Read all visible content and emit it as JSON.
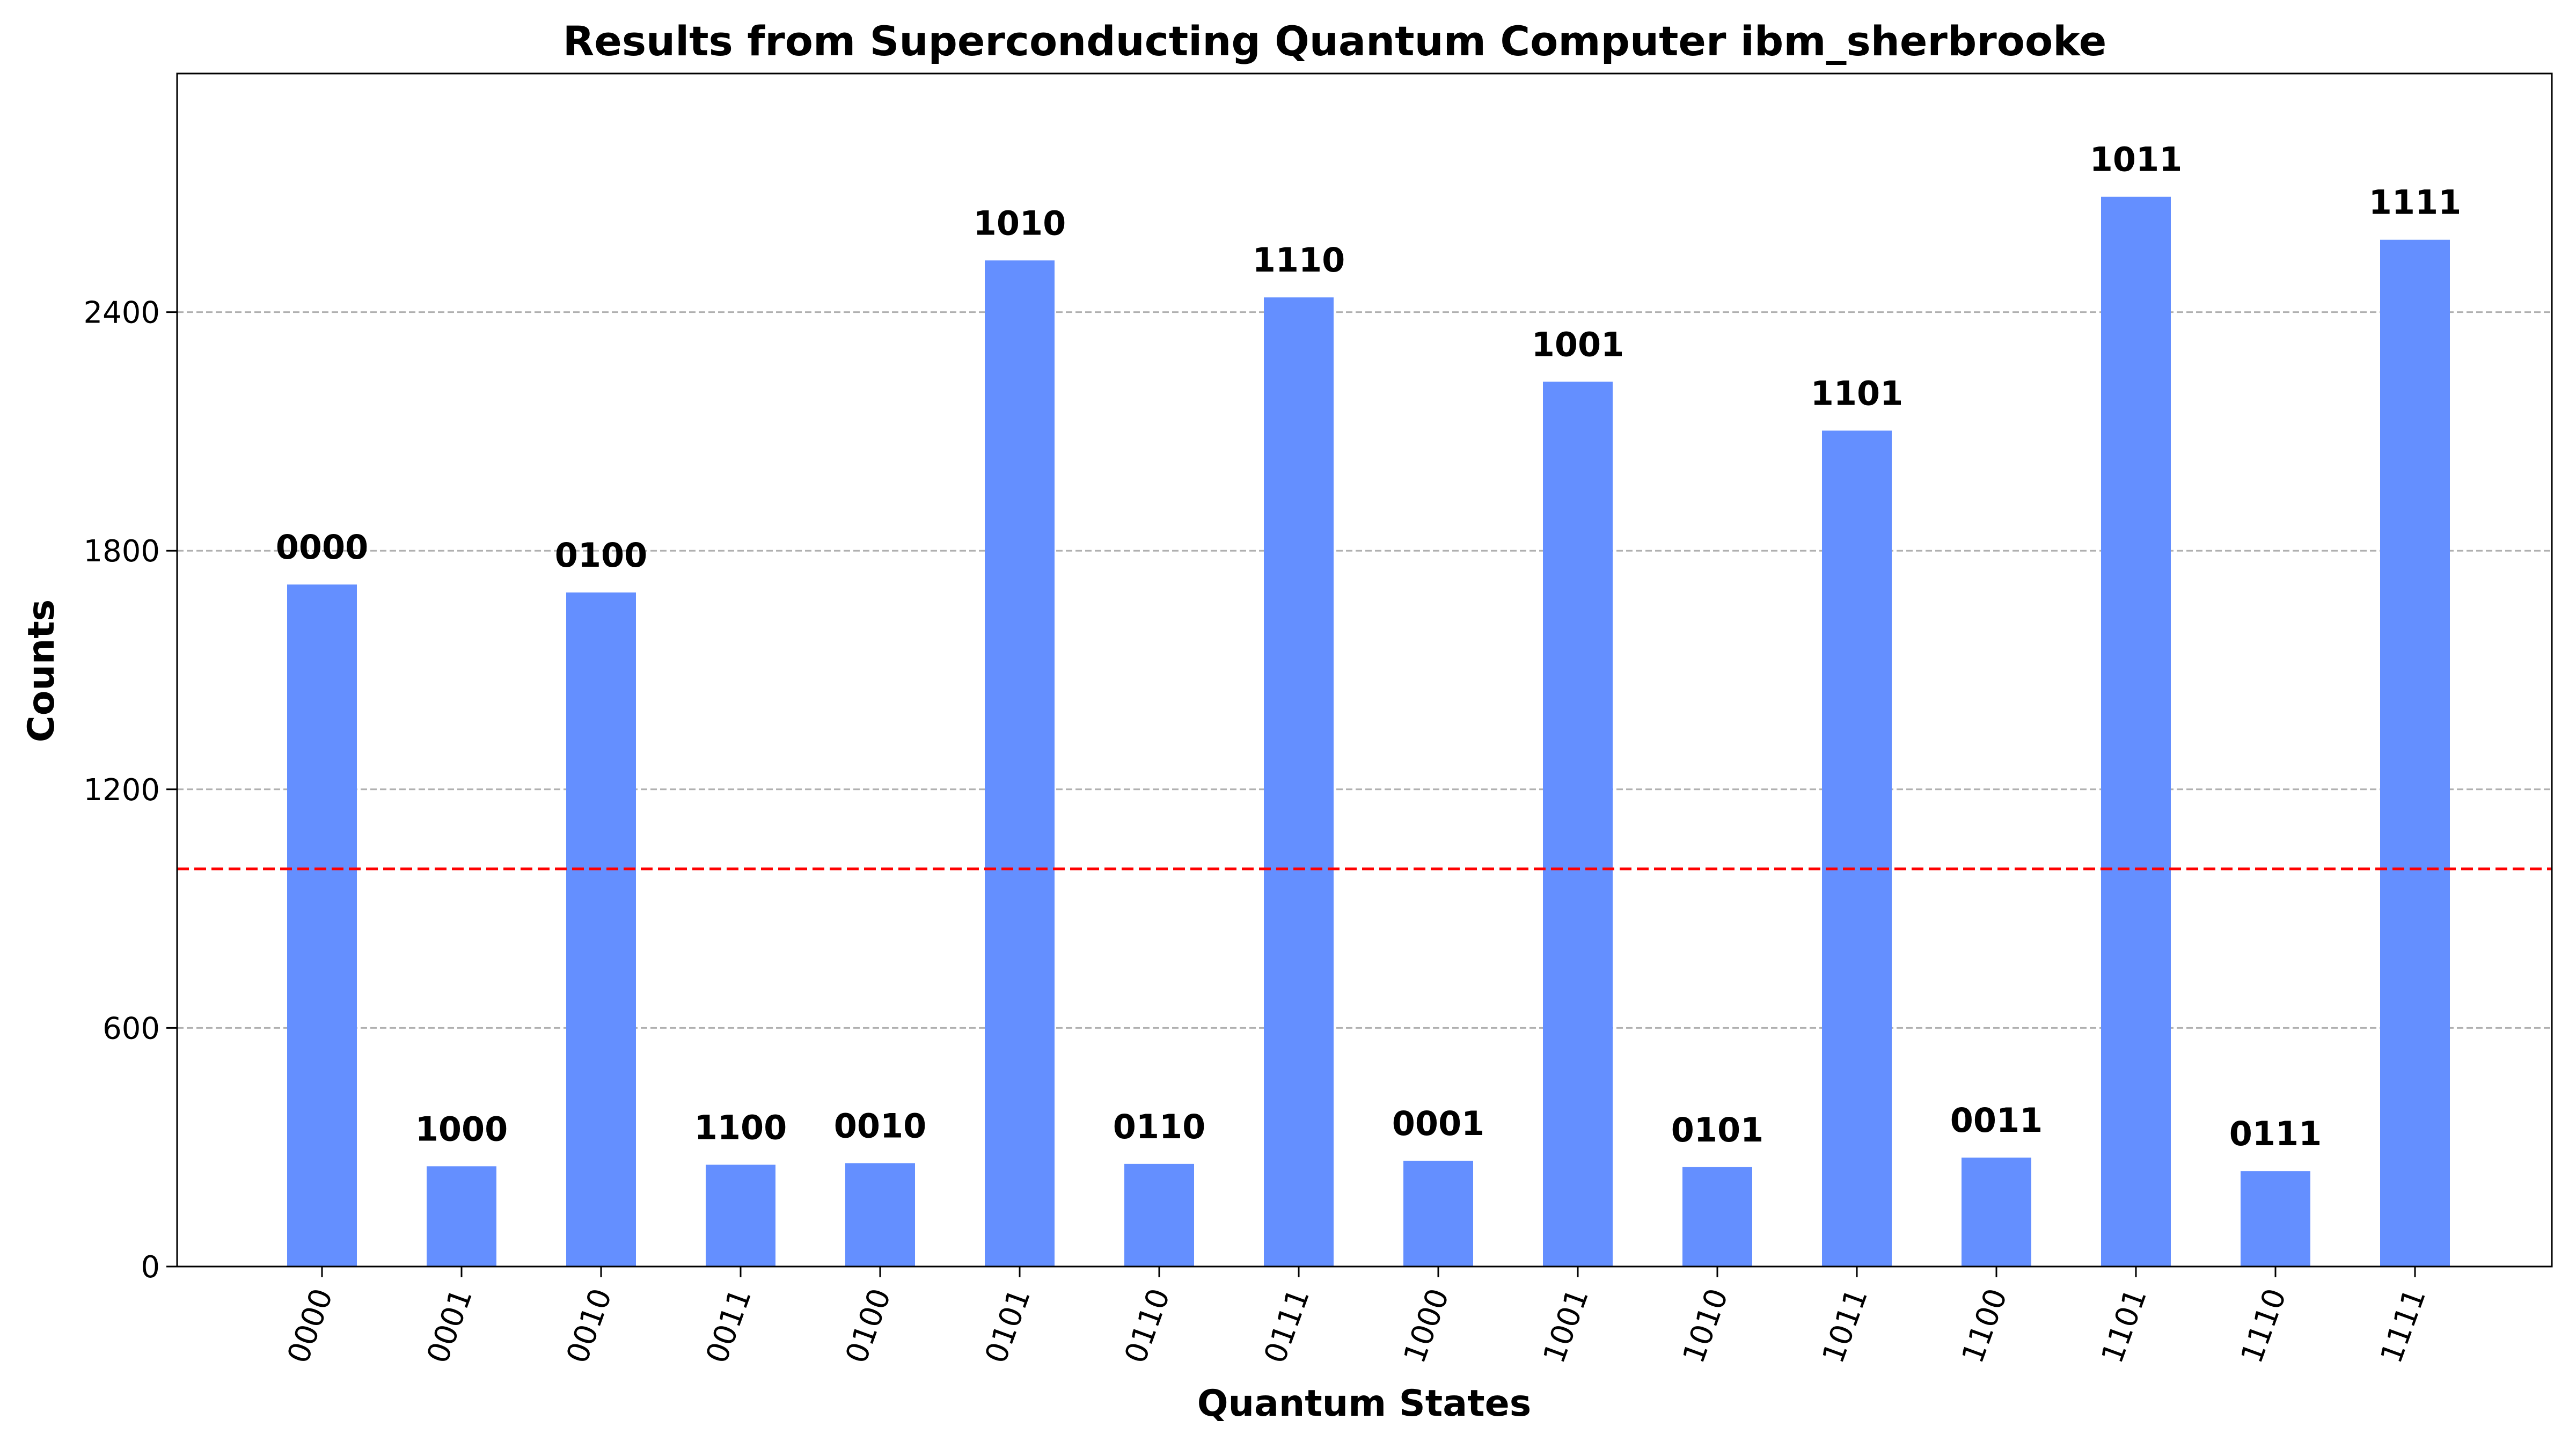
{
  "chart_data": {
    "type": "bar",
    "title": "Results from Superconducting Quantum Computer ibm_sherbrooke",
    "xlabel": "Quantum States",
    "ylabel": "Counts",
    "categories": [
      "0000",
      "0001",
      "0010",
      "0011",
      "0100",
      "0101",
      "0110",
      "0111",
      "1000",
      "1001",
      "1010",
      "1011",
      "1100",
      "1101",
      "1110",
      "1111"
    ],
    "values": [
      1715,
      252,
      1695,
      256,
      260,
      2530,
      258,
      2437,
      266,
      2225,
      250,
      2102,
      274,
      2690,
      240,
      2582
    ],
    "bar_labels": [
      "0000",
      "1000",
      "0100",
      "1100",
      "0010",
      "1010",
      "0110",
      "1110",
      "0001",
      "1001",
      "0101",
      "1101",
      "0011",
      "1011",
      "0111",
      "1111"
    ],
    "yticks": [
      0,
      600,
      1200,
      1800,
      2400
    ],
    "ylim": [
      0,
      3000
    ],
    "grid": "horizontal dashed",
    "reference_line": {
      "value": 1000,
      "style": "dashed",
      "color": "#ff0000"
    },
    "colors": {
      "bar": "#648fff",
      "grid": "#b0b0b0",
      "axis": "#000000"
    }
  }
}
